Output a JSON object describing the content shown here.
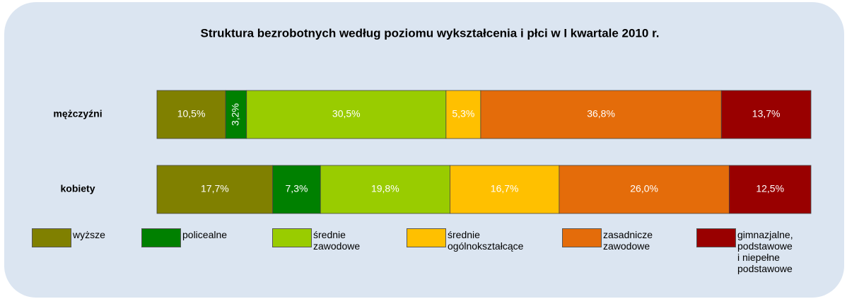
{
  "chart_data": {
    "type": "stacked-bar-horizontal",
    "title": "Struktura bezrobotnych według poziomu wykształcenia i płci w I kwartale 2010 r.",
    "categories": [
      "mężczyźni",
      "kobiety"
    ],
    "xlim": [
      0,
      100
    ],
    "series": [
      {
        "name": "wyższe",
        "color": "#808000",
        "values": [
          10.5,
          17.7
        ],
        "value_labels": [
          "10,5%",
          "17,7%"
        ]
      },
      {
        "name": "policealne",
        "color": "#008000",
        "values": [
          3.2,
          7.3
        ],
        "value_labels": [
          "3,2%",
          "7,3%"
        ]
      },
      {
        "name": "średnie zawodowe",
        "color": "#99cc00",
        "values": [
          30.5,
          19.8
        ],
        "value_labels": [
          "30,5%",
          "19,8%"
        ]
      },
      {
        "name": "średnie ogólnokształcące",
        "color": "#ffc000",
        "values": [
          5.3,
          16.7
        ],
        "value_labels": [
          "5,3%",
          "16,7%"
        ]
      },
      {
        "name": "zasadnicze zawodowe",
        "color": "#e46c0a",
        "values": [
          36.8,
          26.0
        ],
        "value_labels": [
          "36,8%",
          "26,0%"
        ]
      },
      {
        "name": "gimnazjalne, podstawowe i niepełne podstawowe",
        "color": "#990000",
        "values": [
          13.7,
          12.5
        ],
        "value_labels": [
          "13,7%",
          "12,5%"
        ]
      }
    ]
  }
}
